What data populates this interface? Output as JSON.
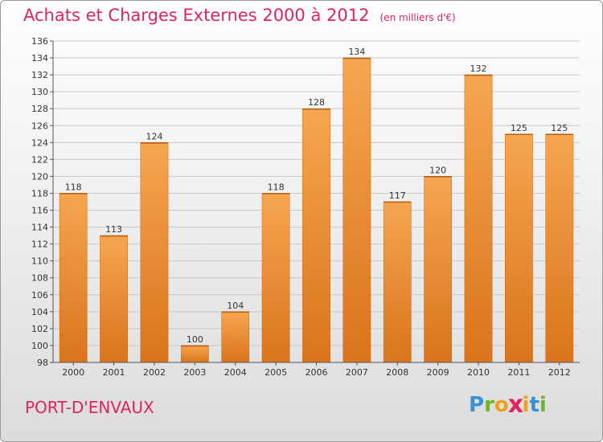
{
  "title": "Achats et Charges Externes 2000 à 2012",
  "subtitle": "(en milliers d'€)",
  "commune": "PORT-D'ENVAUX",
  "brand": {
    "letters": [
      "P",
      "r",
      "o",
      "x",
      "i",
      "t",
      "i"
    ],
    "colors": [
      "#3a8fd8",
      "#6fb52c",
      "#f0a020",
      "#e0245e",
      "#f0a020",
      "#3a8fd8",
      "#6fb52c"
    ]
  },
  "colors": {
    "bar": "#f39a3e",
    "bar_dark": "#d9771f",
    "accent": "#e0245e"
  },
  "chart_data": {
    "type": "bar",
    "categories": [
      "2000",
      "2001",
      "2002",
      "2003",
      "2004",
      "2005",
      "2006",
      "2007",
      "2008",
      "2009",
      "2010",
      "2011",
      "2012"
    ],
    "values": [
      118,
      113,
      124,
      100,
      104,
      118,
      128,
      134,
      117,
      120,
      132,
      125,
      125
    ],
    "ylim": [
      98,
      136
    ],
    "yticks": [
      98,
      100,
      102,
      104,
      106,
      108,
      110,
      112,
      114,
      116,
      118,
      120,
      122,
      124,
      126,
      128,
      130,
      132,
      134,
      136
    ],
    "grid": true
  }
}
